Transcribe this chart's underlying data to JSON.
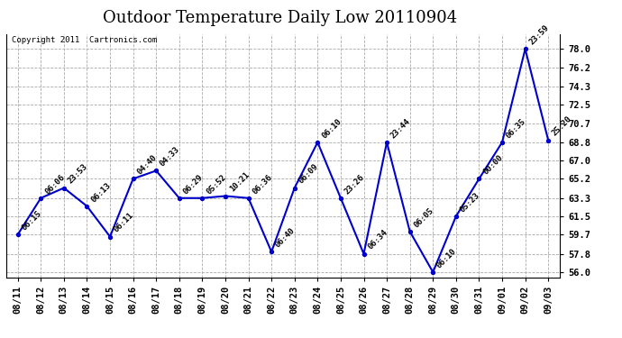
{
  "title": "Outdoor Temperature Daily Low 20110904",
  "copyright": "Copyright 2011  Cartronics.com",
  "background_color": "#ffffff",
  "line_color": "#0000cc",
  "point_color": "#0000cc",
  "grid_color": "#aaaaaa",
  "text_color": "#000000",
  "x_labels": [
    "08/11",
    "08/12",
    "08/13",
    "08/14",
    "08/15",
    "08/16",
    "08/17",
    "08/18",
    "08/19",
    "08/20",
    "08/21",
    "08/22",
    "08/23",
    "08/24",
    "08/25",
    "08/26",
    "08/27",
    "08/28",
    "08/29",
    "08/30",
    "08/31",
    "09/01",
    "09/02",
    "09/03"
  ],
  "y_values": [
    59.7,
    63.3,
    64.3,
    62.5,
    59.5,
    65.2,
    66.0,
    63.3,
    63.3,
    63.5,
    63.3,
    58.0,
    64.3,
    68.8,
    63.3,
    57.8,
    68.8,
    60.0,
    56.0,
    61.5,
    65.2,
    68.8,
    78.0,
    69.0
  ],
  "point_labels": [
    "06:15",
    "06:06",
    "23:53",
    "06:13",
    "06:11",
    "04:40",
    "04:33",
    "06:29",
    "05:52",
    "10:21",
    "06:36",
    "06:40",
    "06:09",
    "06:10",
    "23:26",
    "06:34",
    "23:44",
    "06:05",
    "06:10",
    "05:23",
    "00:00",
    "06:35",
    "23:59",
    "25:20"
  ],
  "ylim": [
    55.5,
    79.5
  ],
  "yticks": [
    56.0,
    57.8,
    59.7,
    61.5,
    63.3,
    65.2,
    67.0,
    68.8,
    70.7,
    72.5,
    74.3,
    76.2,
    78.0
  ],
  "title_fontsize": 13,
  "label_fontsize": 6.5,
  "tick_fontsize": 7.5,
  "copyright_fontsize": 6.5
}
